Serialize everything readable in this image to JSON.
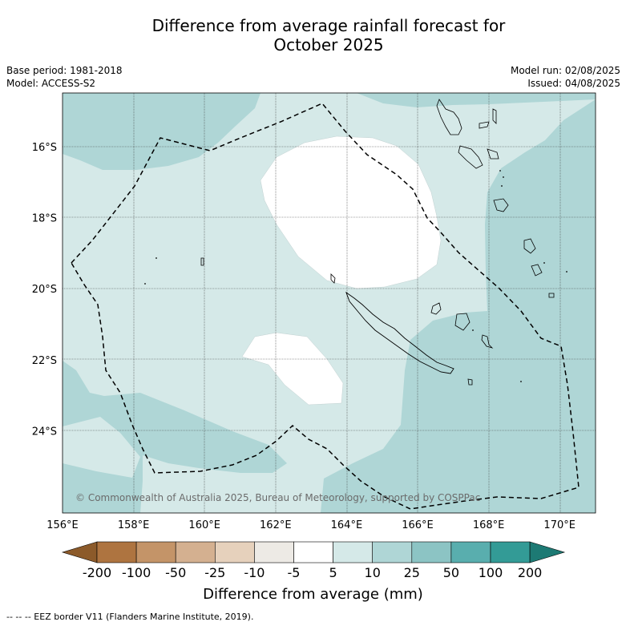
{
  "title": {
    "line1": "Difference from average rainfall forecast for",
    "line2": "October 2025"
  },
  "meta": {
    "base_period": "Base period: 1981-2018",
    "model": "Model: ACCESS-S2",
    "model_run": "Model run: 02/08/2025",
    "issued": "Issued: 04/08/2025"
  },
  "axes": {
    "x_ticks": [
      "156°E",
      "158°E",
      "160°E",
      "162°E",
      "164°E",
      "166°E",
      "168°E",
      "170°E"
    ],
    "y_ticks": [
      "16°S",
      "18°S",
      "20°S",
      "22°S",
      "24°S"
    ]
  },
  "colorbar": {
    "title": "Difference from average (mm)",
    "tick_labels": [
      "-200",
      "-100",
      "-50",
      "-25",
      "-10",
      "-5",
      "5",
      "10",
      "25",
      "50",
      "100",
      "200"
    ],
    "colors": [
      "#8c5a2a",
      "#ae7440",
      "#c49468",
      "#d4b090",
      "#e6d1bc",
      "#edeae5",
      "#ffffff",
      "#d5e9e8",
      "#afd6d6",
      "#8cc4c4",
      "#59aeae",
      "#339b96",
      "#1d7a74"
    ]
  },
  "copyright": "© Commonwealth of Australia 2025, Bureau of Meteorology, supported by COSPPac",
  "footnote": "--  --  -- EEZ border V11 (Flanders Marine Institute, 2019).",
  "colors": {
    "fill_10_25": "#afd6d6",
    "fill_5_10": "#d5e9e8",
    "fill_neg5_5": "#ffffff"
  }
}
